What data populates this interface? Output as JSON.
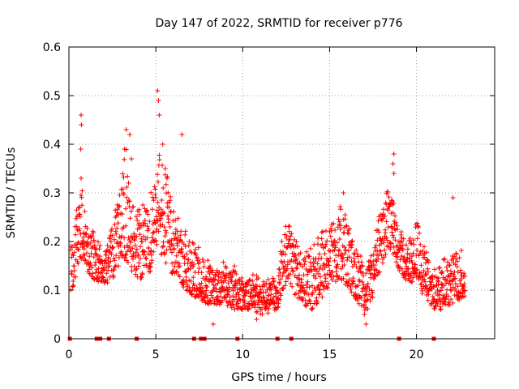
{
  "chart_data": {
    "type": "scatter",
    "title": "Day 147 of 2022, SRMTID for receiver p776",
    "xlabel": "GPS time / hours",
    "ylabel": "SRMTID / TECUs",
    "xlim": [
      0,
      24.5
    ],
    "ylim": [
      0,
      0.6
    ],
    "xticks": [
      0,
      5,
      10,
      15,
      20
    ],
    "xtick_labels": [
      "0",
      "5",
      "10",
      "15",
      "20"
    ],
    "yticks": [
      0,
      0.1,
      0.2,
      0.3,
      0.4,
      0.5,
      0.6
    ],
    "ytick_labels": [
      "0",
      "0.1",
      "0.2",
      "0.3",
      "0.4",
      "0.5",
      "0.6"
    ],
    "grid": true,
    "marker": "+",
    "color": "#ff0000",
    "envelope": {
      "x": [
        0.0,
        0.4,
        0.7,
        1.0,
        1.5,
        2.0,
        2.5,
        3.0,
        3.3,
        3.6,
        4.0,
        4.5,
        5.0,
        5.2,
        5.5,
        6.0,
        6.5,
        7.0,
        7.5,
        8.0,
        8.5,
        9.0,
        9.5,
        10.0,
        10.5,
        11.0,
        11.5,
        12.0,
        12.3,
        12.7,
        13.0,
        13.5,
        14.0,
        14.5,
        15.0,
        15.5,
        16.0,
        16.5,
        17.0,
        17.5,
        18.0,
        18.3,
        18.7,
        19.0,
        19.5,
        20.0,
        20.5,
        21.0,
        21.5,
        22.0,
        22.5,
        22.8
      ],
      "low": [
        0.09,
        0.12,
        0.16,
        0.14,
        0.12,
        0.11,
        0.12,
        0.14,
        0.16,
        0.14,
        0.12,
        0.13,
        0.15,
        0.17,
        0.16,
        0.13,
        0.11,
        0.09,
        0.08,
        0.07,
        0.07,
        0.07,
        0.06,
        0.06,
        0.06,
        0.05,
        0.05,
        0.06,
        0.1,
        0.12,
        0.09,
        0.07,
        0.06,
        0.08,
        0.11,
        0.12,
        0.11,
        0.08,
        0.05,
        0.08,
        0.15,
        0.18,
        0.17,
        0.14,
        0.11,
        0.12,
        0.08,
        0.06,
        0.06,
        0.07,
        0.08,
        0.08
      ],
      "high": [
        0.17,
        0.26,
        0.3,
        0.26,
        0.21,
        0.18,
        0.23,
        0.32,
        0.38,
        0.3,
        0.25,
        0.27,
        0.33,
        0.38,
        0.35,
        0.28,
        0.22,
        0.2,
        0.18,
        0.16,
        0.15,
        0.15,
        0.14,
        0.13,
        0.13,
        0.12,
        0.12,
        0.13,
        0.22,
        0.24,
        0.2,
        0.18,
        0.18,
        0.21,
        0.23,
        0.27,
        0.24,
        0.19,
        0.14,
        0.18,
        0.27,
        0.3,
        0.28,
        0.23,
        0.19,
        0.25,
        0.18,
        0.14,
        0.15,
        0.17,
        0.19,
        0.14
      ]
    },
    "notable_points": [
      {
        "x": 0.7,
        "y": 0.46
      },
      {
        "x": 0.72,
        "y": 0.44
      },
      {
        "x": 0.68,
        "y": 0.39
      },
      {
        "x": 0.7,
        "y": 0.33
      },
      {
        "x": 3.3,
        "y": 0.43
      },
      {
        "x": 3.5,
        "y": 0.42
      },
      {
        "x": 3.2,
        "y": 0.39
      },
      {
        "x": 3.6,
        "y": 0.37
      },
      {
        "x": 5.1,
        "y": 0.51
      },
      {
        "x": 5.15,
        "y": 0.49
      },
      {
        "x": 5.2,
        "y": 0.46
      },
      {
        "x": 5.4,
        "y": 0.4
      },
      {
        "x": 6.5,
        "y": 0.42
      },
      {
        "x": 18.7,
        "y": 0.38
      },
      {
        "x": 18.65,
        "y": 0.36
      },
      {
        "x": 18.7,
        "y": 0.34
      },
      {
        "x": 22.1,
        "y": 0.29
      },
      {
        "x": 15.8,
        "y": 0.3
      },
      {
        "x": 8.3,
        "y": 0.03
      },
      {
        "x": 10.8,
        "y": 0.04
      },
      {
        "x": 17.1,
        "y": 0.03
      },
      {
        "x": 17.0,
        "y": 0.05
      }
    ],
    "gaps_x": [
      0.05,
      1.6,
      1.8,
      2.3,
      3.9,
      7.2,
      7.6,
      7.8,
      9.7,
      12.0,
      12.8,
      19.0,
      21.0
    ]
  }
}
